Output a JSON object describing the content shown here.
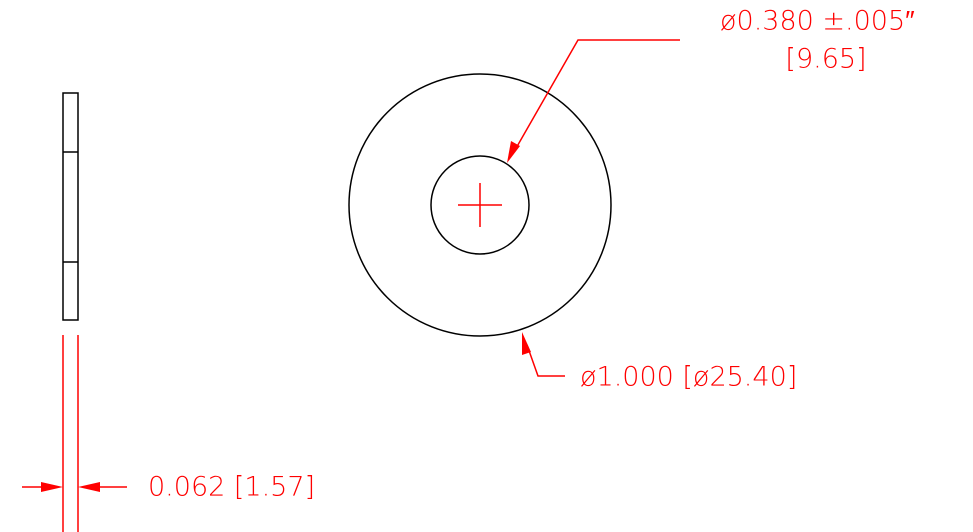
{
  "dimensions": {
    "inner_diameter": {
      "label": "ø0.380 ±.005″",
      "metric": "[9.65]"
    },
    "outer_diameter": {
      "label": "ø1.000 [ø25.40]"
    },
    "thickness": {
      "label": "0.062 [1.57]"
    }
  }
}
